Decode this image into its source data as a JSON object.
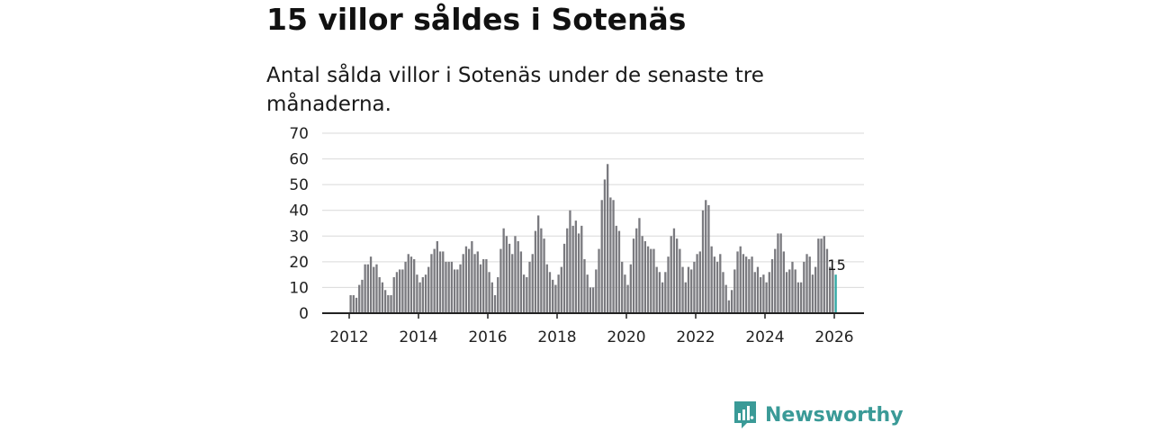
{
  "header": {
    "title": "15 villor såldes i Sotenäs",
    "subtitle": "Antal sålda villor i Sotenäs under de senaste tre månaderna."
  },
  "brand": {
    "name": "Newsworthy",
    "color": "#3a9a97"
  },
  "colors": {
    "bar": "#7a7a7f",
    "highlight": "#2fa7a3",
    "grid": "#d9d9d9",
    "axis": "#222222"
  },
  "chart_data": {
    "type": "bar",
    "title": "15 villor såldes i Sotenäs",
    "subtitle": "Antal sålda villor i Sotenäs under de senaste tre månaderna.",
    "xlabel": "",
    "ylabel": "",
    "ylim": [
      0,
      70
    ],
    "yticks": [
      "0",
      "10",
      "20",
      "30",
      "40",
      "50",
      "60",
      "70"
    ],
    "xticks": [
      "2012",
      "2014",
      "2016",
      "2018",
      "2020",
      "2022",
      "2024",
      "2026"
    ],
    "x_start": {
      "year": 2012,
      "month": 1
    },
    "interval": "month",
    "values": [
      7,
      7,
      6,
      11,
      13,
      19,
      19,
      22,
      18,
      19,
      14,
      12,
      9,
      7,
      7,
      14,
      16,
      17,
      17,
      20,
      23,
      22,
      21,
      15,
      12,
      14,
      15,
      18,
      23,
      25,
      28,
      24,
      24,
      20,
      20,
      20,
      17,
      17,
      19,
      23,
      26,
      25,
      28,
      23,
      24,
      19,
      21,
      21,
      16,
      12,
      7,
      14,
      25,
      33,
      30,
      27,
      23,
      30,
      28,
      24,
      15,
      14,
      20,
      23,
      32,
      38,
      33,
      29,
      19,
      16,
      13,
      11,
      15,
      18,
      27,
      33,
      40,
      34,
      36,
      31,
      34,
      21,
      15,
      10,
      10,
      17,
      25,
      44,
      52,
      58,
      45,
      44,
      34,
      32,
      20,
      15,
      11,
      19,
      29,
      33,
      37,
      30,
      28,
      26,
      25,
      25,
      18,
      16,
      12,
      16,
      22,
      30,
      33,
      29,
      25,
      18,
      12,
      18,
      17,
      20,
      23,
      24,
      40,
      44,
      42,
      26,
      22,
      20,
      23,
      16,
      11,
      5,
      9,
      17,
      24,
      26,
      23,
      22,
      21,
      22,
      16,
      18,
      14,
      15,
      12,
      16,
      21,
      25,
      31,
      31,
      24,
      16,
      17,
      20,
      17,
      12,
      12,
      20,
      23,
      22,
      15,
      18,
      29,
      29,
      30,
      25,
      18,
      17,
      15
    ],
    "highlight_last": true,
    "annotations": [
      {
        "label": "15",
        "target": "last"
      }
    ]
  }
}
